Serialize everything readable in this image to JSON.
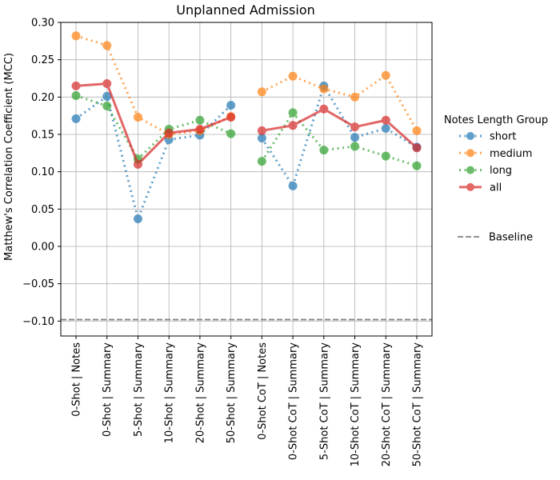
{
  "chart_data": {
    "type": "line",
    "title": "Unplanned Admission",
    "xlabel": "",
    "ylabel": "Matthew's Correlation Coefficient (MCC)",
    "ylim": [
      -0.12,
      0.3
    ],
    "yticks": [
      -0.1,
      -0.05,
      0.0,
      0.05,
      0.1,
      0.15,
      0.2,
      0.25,
      0.3
    ],
    "ytick_labels": [
      "−0.10",
      "−0.05",
      "0.00",
      "0.05",
      "0.10",
      "0.15",
      "0.20",
      "0.25",
      "0.30"
    ],
    "grid": true,
    "categories": [
      "0-Shot | Notes",
      "0-Shot | Summary",
      "5-Shot | Summary",
      "10-Shot | Summary",
      "20-Shot | Summary",
      "50-Shot | Summary",
      "0-Shot CoT | Notes",
      "0-Shot CoT | Summary",
      "5-Shot CoT | Summary",
      "10-Shot CoT | Summary",
      "20-Shot CoT | Summary",
      "50-Shot CoT | Summary"
    ],
    "legend_title": "Notes Length Group",
    "legend_position": "right",
    "series": [
      {
        "name": "short",
        "color": "#1f77b4",
        "style": "dotted",
        "segments": [
          [
            0.171,
            0.201,
            0.037,
            0.143,
            0.149,
            0.189
          ],
          [
            0.145,
            0.081,
            0.215,
            0.146,
            0.158,
            0.133
          ]
        ]
      },
      {
        "name": "medium",
        "color": "#ff7f0e",
        "style": "dotted",
        "segments": [
          [
            0.282,
            0.269,
            0.173,
            0.15,
            0.155,
            0.174
          ],
          [
            0.207,
            0.228,
            0.211,
            0.2,
            0.229,
            0.155
          ]
        ]
      },
      {
        "name": "long",
        "color": "#2ca02c",
        "style": "dotted",
        "segments": [
          [
            0.202,
            0.188,
            0.117,
            0.157,
            0.169,
            0.151
          ],
          [
            0.114,
            0.179,
            0.129,
            0.134,
            0.121,
            0.108
          ]
        ]
      },
      {
        "name": "all",
        "color": "#d62728",
        "style": "solid",
        "segments": [
          [
            0.215,
            0.218,
            0.11,
            0.152,
            0.157,
            0.173
          ],
          [
            0.155,
            0.162,
            0.184,
            0.16,
            0.169,
            0.132
          ]
        ]
      }
    ],
    "baseline": {
      "name": "Baseline",
      "value": -0.098,
      "color": "#808080",
      "style": "dashed"
    }
  }
}
